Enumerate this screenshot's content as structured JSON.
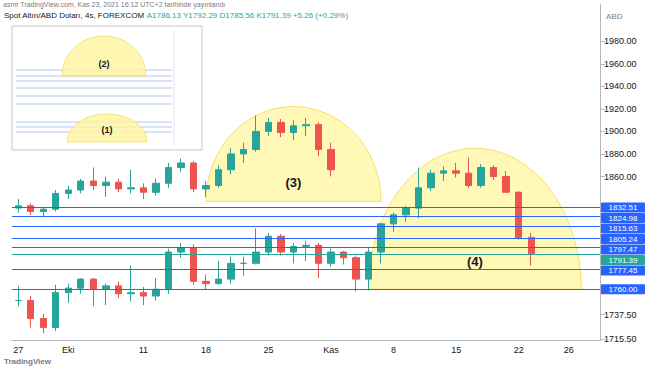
{
  "chart_data": {
    "type": "candlestick",
    "publisher": "asmr TradingView.com, Kas 23, 2021 16:12 UTC+2 tarihinde yayınlandı",
    "title": "Spot Altın/ABD Doları, 4s, FOREXCOM",
    "ohlc": "A1786.13 Y1792.29 D1785.56 K1791.39 +5.26 (+0.29%)",
    "y_label": "ABD",
    "watermark": "TradingView",
    "categories": [
      "27",
      null,
      null,
      null,
      "Eki",
      null,
      null,
      null,
      null,
      null,
      "11",
      null,
      null,
      null,
      null,
      "18",
      null,
      null,
      null,
      null,
      "25",
      null,
      null,
      null,
      null,
      "Kas",
      null,
      null,
      null,
      null,
      "8",
      null,
      null,
      null,
      null,
      "15",
      null,
      null,
      null,
      null,
      "22",
      null,
      null,
      null,
      "26",
      null,
      null
    ],
    "series": [
      {
        "colors": [
          "#26a69a",
          "#ef5350"
        ],
        "values": [
          [
            1750,
            1763,
            1745,
            1750
          ],
          [
            1750,
            1754,
            1726,
            1734
          ],
          [
            1734,
            1738,
            1721,
            1726
          ],
          [
            1726,
            1764,
            1723,
            1757
          ],
          [
            1757,
            1765,
            1748,
            1761
          ],
          [
            1761,
            1770,
            1756,
            1769
          ],
          [
            1769,
            1770,
            1745,
            1760
          ],
          [
            1760,
            1765,
            1746,
            1763
          ],
          [
            1763,
            1767,
            1752,
            1756
          ],
          [
            1756,
            1781,
            1749,
            1757
          ],
          [
            1757,
            1762,
            1746,
            1754
          ],
          [
            1754,
            1770,
            1750,
            1760
          ],
          [
            1760,
            1796,
            1756,
            1793
          ],
          [
            1793,
            1801,
            1788,
            1797
          ],
          [
            1797,
            1800,
            1764,
            1767
          ],
          [
            1767,
            1773,
            1760,
            1765
          ],
          [
            1765,
            1785,
            1764,
            1769
          ],
          [
            1769,
            1789,
            1765,
            1783
          ],
          [
            1783,
            1789,
            1772,
            1783
          ],
          [
            1783,
            1814,
            1782,
            1793
          ],
          [
            1793,
            1810,
            1790,
            1807
          ],
          [
            1807,
            1809,
            1790,
            1793
          ],
          [
            1793,
            1801,
            1783,
            1798
          ],
          [
            1798,
            1803,
            1785,
            1799
          ],
          [
            1799,
            1801,
            1770,
            1783
          ],
          [
            1783,
            1796,
            1780,
            1793
          ],
          [
            1793,
            1794,
            1782,
            1788
          ],
          [
            1788,
            1790,
            1758,
            1769
          ],
          [
            1769,
            1797,
            1759,
            1793
          ],
          [
            1793,
            1819,
            1783,
            1818
          ],
          [
            1818,
            1828,
            1811,
            1826
          ],
          [
            1826,
            1834,
            1820,
            1832
          ],
          [
            1832,
            1868,
            1823,
            1850
          ],
          [
            1850,
            1866,
            1847,
            1863
          ],
          [
            1863,
            1869,
            1856,
            1865
          ],
          [
            1865,
            1872,
            1859,
            1863
          ],
          [
            1863,
            1877,
            1850,
            1852
          ],
          [
            1852,
            1871,
            1850,
            1868
          ],
          [
            1868,
            1870,
            1857,
            1860
          ],
          [
            1860,
            1865,
            1846,
            1846
          ],
          [
            1846,
            1847,
            1804,
            1806
          ],
          [
            1806,
            1810,
            1781,
            1791.39
          ],
          null,
          null,
          null,
          null,
          null
        ]
      },
      {
        "colors": [
          "#26a69a",
          "#ef5350"
        ],
        "values": [
          [
            1832,
            1840,
            1828,
            1834
          ],
          [
            1834,
            1836,
            1826,
            1829
          ],
          [
            1829,
            1833,
            1825,
            1831
          ],
          [
            1831,
            1848,
            1829,
            1845
          ],
          [
            1845,
            1852,
            1840,
            1848
          ],
          [
            1848,
            1858,
            1845,
            1856
          ],
          [
            1856,
            1868,
            1848,
            1852
          ],
          [
            1852,
            1860,
            1842,
            1855
          ],
          [
            1855,
            1858,
            1846,
            1849
          ],
          [
            1849,
            1866,
            1845,
            1850
          ],
          [
            1850,
            1854,
            1840,
            1846
          ],
          [
            1846,
            1858,
            1843,
            1854
          ],
          [
            1854,
            1872,
            1850,
            1868
          ],
          [
            1868,
            1876,
            1864,
            1872
          ],
          [
            1872,
            1874,
            1846,
            1849
          ],
          [
            1849,
            1856,
            1842,
            1852
          ],
          [
            1852,
            1870,
            1850,
            1866
          ],
          [
            1866,
            1885,
            1862,
            1880
          ],
          [
            1880,
            1890,
            1872,
            1884
          ],
          [
            1884,
            1914,
            1882,
            1900
          ],
          [
            1900,
            1912,
            1896,
            1908
          ],
          [
            1908,
            1911,
            1895,
            1899
          ],
          [
            1899,
            1910,
            1892,
            1905
          ],
          [
            1905,
            1912,
            1896,
            1906
          ],
          [
            1906,
            1908,
            1878,
            1884
          ],
          [
            1884,
            1890,
            1860,
            1866
          ],
          null,
          null,
          null,
          null,
          null,
          null,
          null,
          null,
          null,
          null,
          null,
          null,
          null,
          null,
          null,
          null,
          null,
          null,
          null,
          null,
          null
        ]
      }
    ],
    "ylim": [
      1715,
      2013
    ],
    "yticks": [
      {
        "value": 1715.5,
        "label": "1715.50"
      },
      {
        "value": 1737.5,
        "label": "1737.50"
      },
      {
        "value": 1860,
        "label": "1860.00"
      },
      {
        "value": 1880,
        "label": "1880.00"
      },
      {
        "value": 1900,
        "label": "1900.00"
      },
      {
        "value": 1920,
        "label": "1920.00"
      },
      {
        "value": 1940,
        "label": "1940.00"
      },
      {
        "value": 1960,
        "label": "1960.00"
      },
      {
        "value": 1980,
        "label": "1980.00"
      }
    ],
    "grid": false,
    "levels": [
      {
        "value": 1832.51,
        "label": "1832.51",
        "color": "#2962ff"
      },
      {
        "value": 1824.98,
        "label": "1824.98",
        "color": "#2962ff"
      },
      {
        "value": 1815.63,
        "label": "1815.63",
        "color": "#2962ff"
      },
      {
        "value": 1805.24,
        "label": "1805.24",
        "color": "#2962ff"
      },
      {
        "value": 1797.47,
        "label": "1797.47",
        "color": "#2962ff"
      },
      {
        "value": 1791.39,
        "label": "1791.39",
        "color": "#26a69a"
      },
      {
        "value": 1777.45,
        "label": "1777.45",
        "color": "#2962ff"
      },
      {
        "value": 1760,
        "label": "1760.00",
        "color": "#2962ff"
      }
    ],
    "arcs": [
      {
        "label": "(3)",
        "start": 15,
        "end": 29,
        "base": 1838,
        "peak": 1922,
        "color": "#fff59d"
      },
      {
        "label": "(4)",
        "start": 28,
        "end": 45,
        "base": 1760,
        "peak": 1885,
        "color": "#fff59d"
      }
    ],
    "inset": {
      "labels": [
        "(2)",
        "(1)"
      ]
    }
  }
}
